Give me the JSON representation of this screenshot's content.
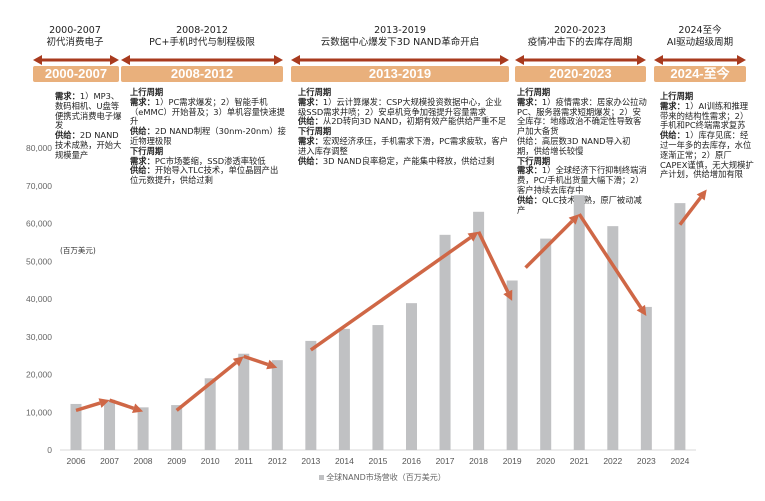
{
  "eras": [
    {
      "years": "2000-2007",
      "subtitle": "初代消费电子",
      "badge": "2000-2007",
      "items": [
        {
          "label": "需求：",
          "text": "1）MP3、数码相机、U盘等便携式消费电子爆发"
        },
        {
          "label": "供给：",
          "text": "2D NAND技术成熟，开始大规模量产"
        }
      ]
    },
    {
      "years": "2008-2012",
      "subtitle": "PC+手机时代与制程极限",
      "badge": "2008-2012",
      "items": [
        {
          "heading": "上行周期"
        },
        {
          "label": "需求：",
          "text": "1）PC需求爆发；2）智能手机（eMMC）开始普及；3）单机容量快速提升"
        },
        {
          "label": "供给：",
          "text": "2D NAND制程（30nm-20nm）接近物理极限"
        },
        {
          "heading": "下行周期"
        },
        {
          "label": "需求：",
          "text": "PC市场萎缩，SSD渗透率较低"
        },
        {
          "label": "供给：",
          "text": "开始导入TLC技术，单位晶圆产出位元数提升，供给过剩"
        }
      ]
    },
    {
      "years": "2013-2019",
      "subtitle": "云数据中心爆发下3D NAND革命开启",
      "badge": "2013-2019",
      "items": [
        {
          "heading": "上行周期"
        },
        {
          "label": "需求：",
          "text": "1）云计算爆发：CSP大规模投资数据中心，企业级SSD需求井喷；2）安卓机竞争加强提升容量需求"
        },
        {
          "label": "供给：",
          "text": "从2D转向3D NAND，初期有效产能供给严重不足"
        },
        {
          "heading": "下行周期"
        },
        {
          "label": "需求：",
          "text": "宏观经济承压，手机需求下滑，PC需求疲软，客户进入库存调整"
        },
        {
          "label": "供给：",
          "text": "3D NAND良率稳定，产能集中释放，供给过剩"
        }
      ]
    },
    {
      "years": "2020-2023",
      "subtitle": "疫情冲击下的去库存周期",
      "badge": "2020-2023",
      "items": [
        {
          "heading": "上行周期"
        },
        {
          "label": "需求：",
          "text": "1）疫情需求：居家办公拉动PC、服务器需求短期爆发；2）安全库存：地缘政治不确定性导致客户加大备货"
        },
        {
          "label": "",
          "text": "供给：高层数3D NAND导入初期，供给增长较慢"
        },
        {
          "heading": "下行周期"
        },
        {
          "label": "需求：",
          "text": "1）全球经济下行抑制终端消费，PC/手机出货量大幅下滑；2）客户持续去库存中"
        },
        {
          "label": "供给：",
          "text": "QLC技术成熟，原厂被动减产"
        }
      ]
    },
    {
      "years": "2024至今",
      "subtitle": "AI驱动超级周期",
      "badge": "2024-至今",
      "items": [
        {
          "heading": "上行周期"
        },
        {
          "label": "需求：",
          "text": "1）AI训练和推理带来的结构性需求；2）手机和PC终端需求复苏"
        },
        {
          "label": "供给：",
          "text": "1）库存见底：经过一年多的去库存，水位逐渐正常；2）原厂CAPEX谨慎，无大规模扩产计划，供给增加有限"
        }
      ]
    }
  ],
  "colors": {
    "bar": "#c0c1c3",
    "arrow": "#cf6746",
    "era_arrow": "#a83a1e",
    "badge": "#e9b07c"
  },
  "chart_data": {
    "type": "bar",
    "unit_label": "(百万美元)",
    "legend": "全球NAND市场营收（百万美元）",
    "legend_position": "bottom",
    "categories": [
      "2006",
      "2007",
      "2008",
      "2009",
      "2010",
      "2011",
      "2012",
      "2013",
      "2014",
      "2015",
      "2016",
      "2017",
      "2018",
      "2019",
      "2020",
      "2021",
      "2022",
      "2023",
      "2024"
    ],
    "values": [
      12200,
      13300,
      11300,
      11900,
      19000,
      25500,
      23800,
      28900,
      32100,
      33100,
      38900,
      57000,
      63100,
      44900,
      56000,
      67500,
      59300,
      37900,
      65400
    ],
    "ylim": [
      0,
      80000
    ],
    "yticks": [
      0,
      10000,
      20000,
      30000,
      40000,
      50000,
      60000,
      70000,
      80000
    ],
    "ytick_labels": [
      "0",
      "10,000",
      "20,000",
      "30,000",
      "40,000",
      "50,000",
      "60,000",
      "70,000",
      "80,000"
    ],
    "trend_arrows": [
      {
        "from": [
          2006,
          10500
        ],
        "to": [
          2007,
          13200
        ]
      },
      {
        "from": [
          2007,
          13200
        ],
        "to": [
          2008,
          10200
        ]
      },
      {
        "from": [
          2009,
          10500
        ],
        "to": [
          2011,
          24800
        ]
      },
      {
        "from": [
          2011,
          24800
        ],
        "to": [
          2012,
          21800
        ]
      },
      {
        "from": [
          2013,
          26500
        ],
        "to": [
          2018,
          57800
        ]
      },
      {
        "from": [
          2018,
          57800
        ],
        "to": [
          2019,
          39500
        ]
      },
      {
        "from": [
          2019.4,
          48300
        ],
        "to": [
          2021,
          62500
        ]
      },
      {
        "from": [
          2021,
          62500
        ],
        "to": [
          2023,
          35500
        ]
      },
      {
        "from": [
          2024,
          59700
        ],
        "to": [
          2024.8,
          69000
        ]
      }
    ]
  }
}
